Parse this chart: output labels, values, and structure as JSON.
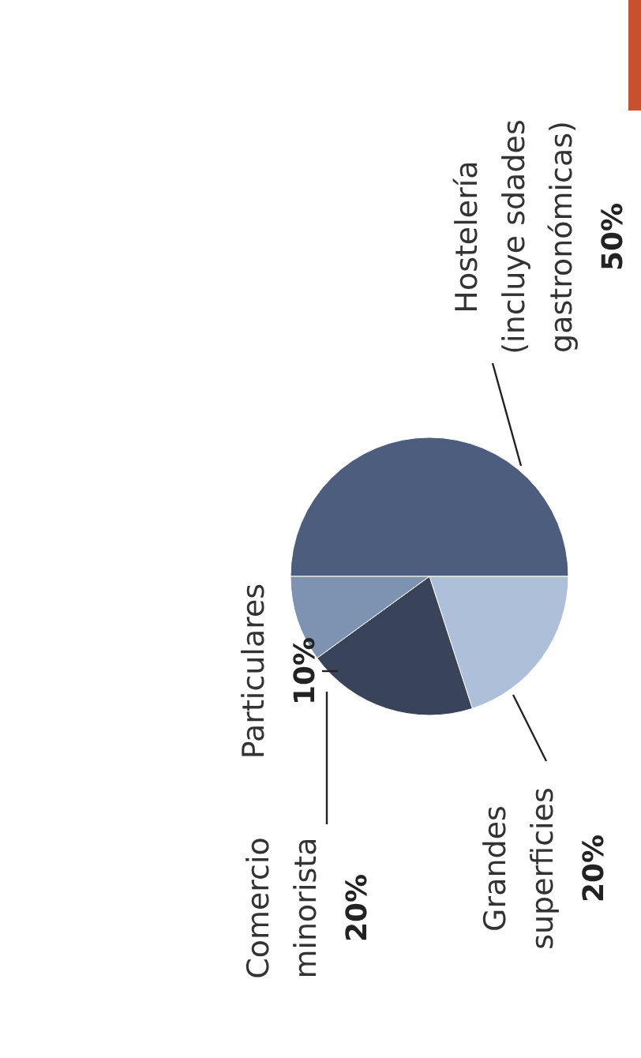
{
  "chart_data": {
    "type": "pie",
    "categories": [
      "Hostelería\n(incluye sdades\ngastronómicas)",
      "Grandes\nsuperficies",
      "Comercio\nminorista",
      "Particulares"
    ],
    "values": [
      50,
      20,
      20,
      10
    ],
    "colors": [
      "#4d5d7e",
      "#aebfd9",
      "#39435a",
      "#7e92b1"
    ],
    "value_labels": [
      "50%",
      "20%",
      "20%",
      "10%"
    ]
  }
}
